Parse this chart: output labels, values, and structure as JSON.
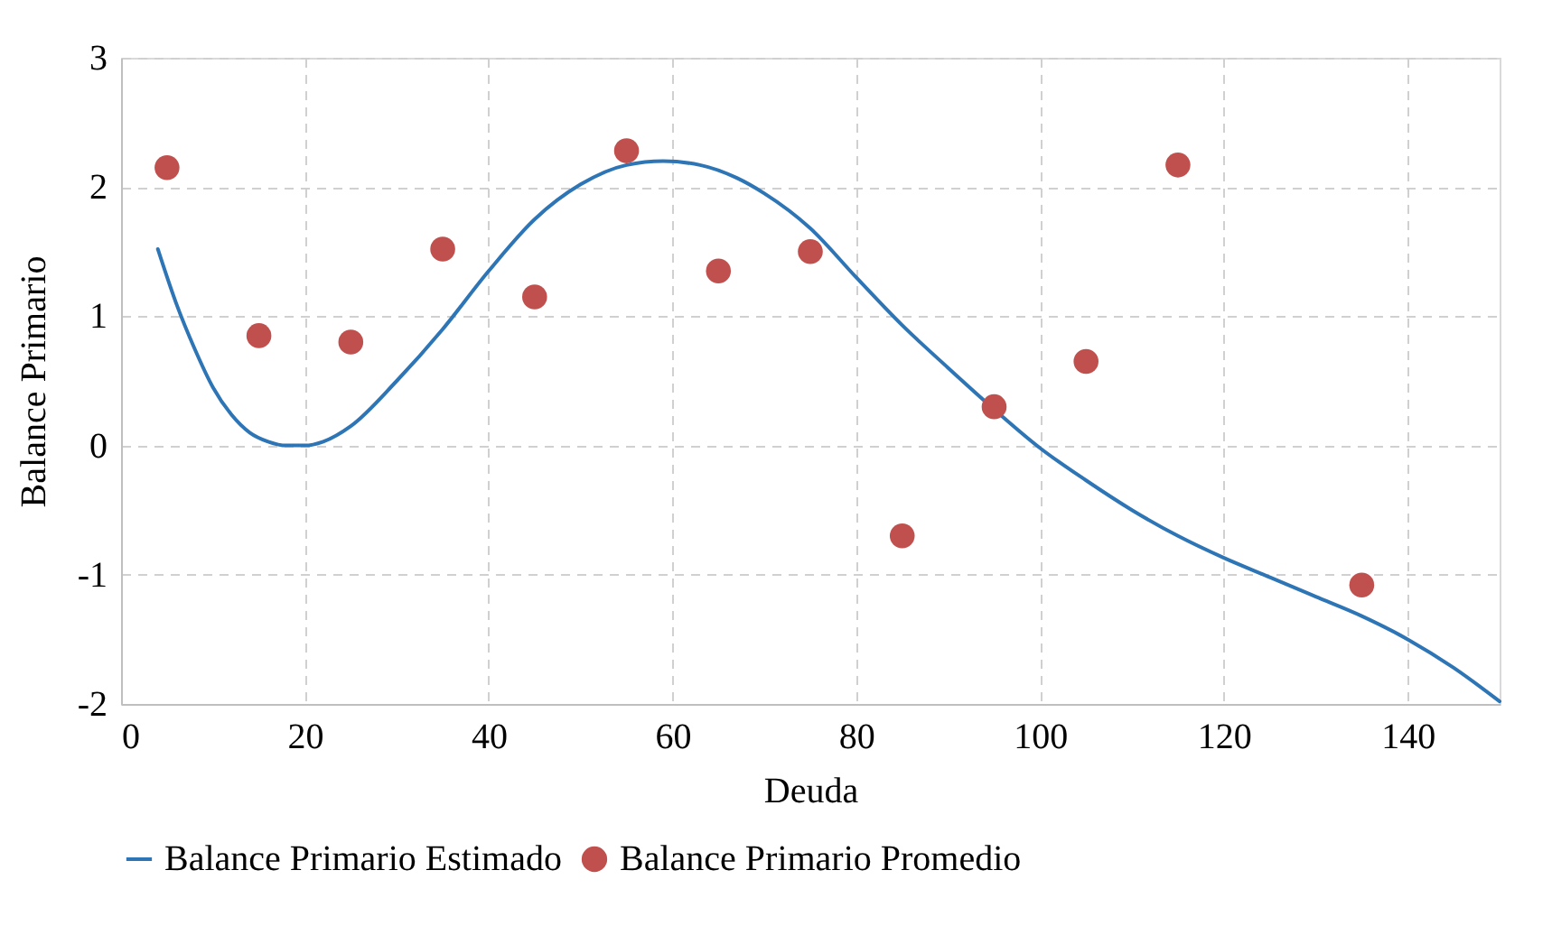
{
  "chart_data": {
    "type": "scatter",
    "xlabel": "Deuda",
    "ylabel": "Balance Primario",
    "xlim": [
      0,
      150
    ],
    "ylim": [
      -2,
      3
    ],
    "xticks": [
      0,
      20,
      40,
      60,
      80,
      100,
      120,
      140
    ],
    "yticks": [
      -2,
      -1,
      0,
      1,
      2,
      3
    ],
    "grid": true,
    "legend": "bottom",
    "line_style": "solid",
    "series": [
      {
        "name": "Balance Primario Estimado",
        "type": "line",
        "color": "#2e75b6",
        "x": [
          4,
          6,
          8,
          10,
          12,
          14,
          16,
          18,
          20,
          22,
          25,
          30,
          35,
          40,
          45,
          50,
          55,
          59,
          63,
          67,
          70,
          75,
          80,
          85,
          90,
          95,
          100,
          105,
          110,
          115,
          120,
          125,
          130,
          135,
          140,
          145,
          150
        ],
        "values": [
          1.52,
          1.1,
          0.75,
          0.45,
          0.24,
          0.1,
          0.03,
          0.0,
          0.0,
          0.03,
          0.15,
          0.5,
          0.9,
          1.35,
          1.75,
          2.02,
          2.17,
          2.2,
          2.17,
          2.07,
          1.95,
          1.68,
          1.3,
          0.93,
          0.6,
          0.28,
          -0.02,
          -0.27,
          -0.5,
          -0.7,
          -0.87,
          -1.02,
          -1.17,
          -1.32,
          -1.5,
          -1.72,
          -1.98
        ]
      },
      {
        "name": "Balance Primario Promedio",
        "marker": "circle",
        "color": "#c0504d",
        "x": [
          5,
          15,
          25,
          35,
          45,
          55,
          65,
          75,
          85,
          95,
          105,
          115,
          135
        ],
        "values": [
          2.15,
          0.85,
          0.8,
          1.52,
          1.15,
          2.28,
          1.35,
          1.5,
          -0.7,
          0.3,
          0.65,
          2.17,
          -1.08
        ]
      }
    ]
  }
}
